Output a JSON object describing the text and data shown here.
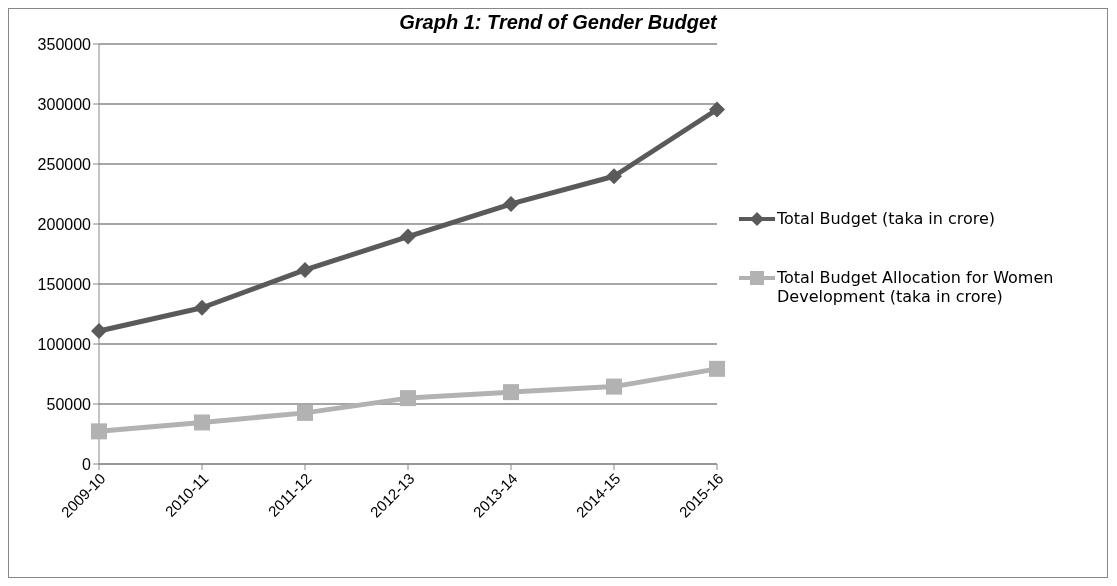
{
  "chart_data": {
    "type": "line",
    "title": "Graph 1: Trend of Gender Budget",
    "categories": [
      "2009-10",
      "2010-11",
      "2011-12",
      "2012-13",
      "2013-14",
      "2014-15",
      "2015-16"
    ],
    "series": [
      {
        "name": "Total Budget (taka in crore)",
        "color": "#5a5a5a",
        "marker": "diamond",
        "values": [
          110800,
          130200,
          161700,
          189500,
          216700,
          239800,
          295400
        ]
      },
      {
        "name": "Total Budget Allocation for Women Development (taka in crore)",
        "color": "#b2b2b2",
        "marker": "square",
        "values": [
          27200,
          34600,
          42600,
          54900,
          59900,
          64500,
          79300
        ]
      }
    ],
    "ylim": [
      0,
      350000
    ],
    "yticks": [
      0,
      50000,
      100000,
      150000,
      200000,
      250000,
      300000,
      350000
    ],
    "grid": "y",
    "legend": "right",
    "line_style": "solid"
  }
}
